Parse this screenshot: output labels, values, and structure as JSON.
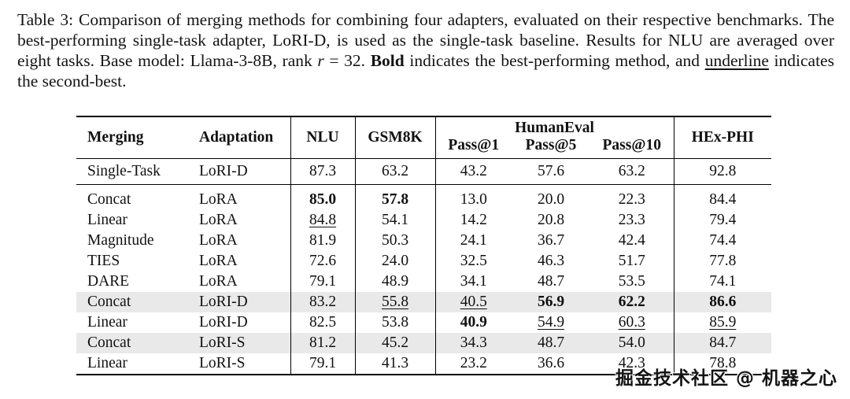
{
  "caption": {
    "part1": "Table 3: Comparison of merging methods for combining four adapters, evaluated on their respective benchmarks. The best-performing single-task adapter, LoRI-D, is used as the single-task baseline. Results for NLU are averaged over eight tasks. Base model: Llama-3-8B, rank ",
    "rank_symbol": "r",
    "part2": " = 32. ",
    "bold_word": "Bold",
    "part3": " indicates the best-performing method, and ",
    "underline_word": "underline",
    "part4": " indicates the second-best."
  },
  "table": {
    "headers": {
      "merging": "Merging",
      "adaptation": "Adaptation",
      "nlu": "NLU",
      "gsm8k": "GSM8K",
      "humaneval": "HumanEval",
      "pass1": "Pass@1",
      "pass5": "Pass@5",
      "pass10": "Pass@10",
      "hexphi": "HEx-PHI"
    },
    "rows": [
      {
        "merging": "Single-Task",
        "adaptation": "LoRI-D",
        "nlu": "87.3",
        "gsm8k": "63.2",
        "pass1": "43.2",
        "pass5": "57.6",
        "pass10": "63.2",
        "hexphi": "92.8"
      },
      {
        "merging": "Concat",
        "adaptation": "LoRA",
        "nlu": "85.0",
        "gsm8k": "57.8",
        "pass1": "13.0",
        "pass5": "20.0",
        "pass10": "22.3",
        "hexphi": "84.4"
      },
      {
        "merging": "Linear",
        "adaptation": "LoRA",
        "nlu": "84.8",
        "gsm8k": "54.1",
        "pass1": "14.2",
        "pass5": "20.8",
        "pass10": "23.3",
        "hexphi": "79.4"
      },
      {
        "merging": "Magnitude",
        "adaptation": "LoRA",
        "nlu": "81.9",
        "gsm8k": "50.3",
        "pass1": "24.1",
        "pass5": "36.7",
        "pass10": "42.4",
        "hexphi": "74.4"
      },
      {
        "merging": "TIES",
        "adaptation": "LoRA",
        "nlu": "72.6",
        "gsm8k": "24.0",
        "pass1": "32.5",
        "pass5": "46.3",
        "pass10": "51.7",
        "hexphi": "77.8"
      },
      {
        "merging": "DARE",
        "adaptation": "LoRA",
        "nlu": "79.1",
        "gsm8k": "48.9",
        "pass1": "34.1",
        "pass5": "48.7",
        "pass10": "53.5",
        "hexphi": "74.1"
      },
      {
        "merging": "Concat",
        "adaptation": "LoRI-D",
        "nlu": "83.2",
        "gsm8k": "55.8",
        "pass1": "40.5",
        "pass5": "56.9",
        "pass10": "62.2",
        "hexphi": "86.6"
      },
      {
        "merging": "Linear",
        "adaptation": "LoRI-D",
        "nlu": "82.5",
        "gsm8k": "53.8",
        "pass1": "40.9",
        "pass5": "54.9",
        "pass10": "60.3",
        "hexphi": "85.9"
      },
      {
        "merging": "Concat",
        "adaptation": "LoRI-S",
        "nlu": "81.2",
        "gsm8k": "45.2",
        "pass1": "34.3",
        "pass5": "48.7",
        "pass10": "54.0",
        "hexphi": "84.7"
      },
      {
        "merging": "Linear",
        "adaptation": "LoRI-S",
        "nlu": "79.1",
        "gsm8k": "41.3",
        "pass1": "23.2",
        "pass5": "36.6",
        "pass10": "42.3",
        "hexphi": "78.8"
      }
    ]
  },
  "watermark": "掘金技术社区 @ 机器之心"
}
